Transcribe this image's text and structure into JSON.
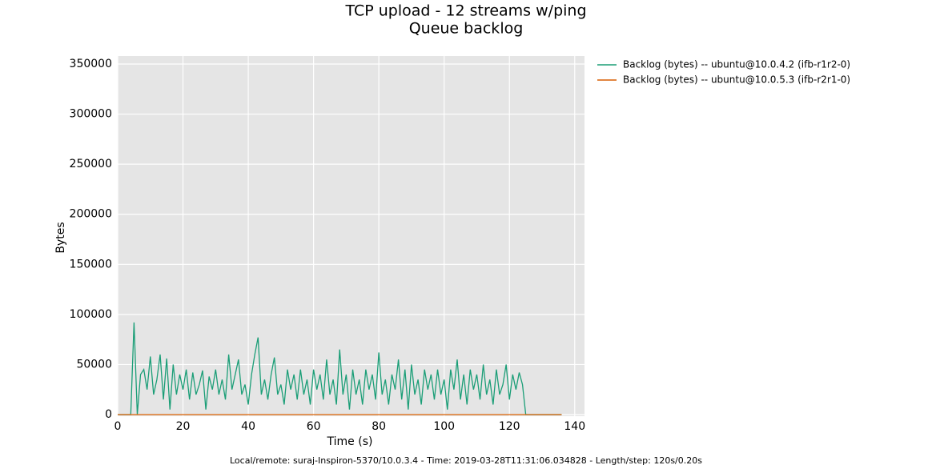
{
  "chart_data": {
    "type": "line",
    "title": "TCP upload - 12 streams w/ping",
    "subtitle": "Queue backlog",
    "x_label": "Time (s)",
    "y_label": "Bytes",
    "footer": "Local/remote: suraj-Inspiron-5370/10.0.3.4 - Time: 2019-03-28T11:31:06.034828 - Length/step: 120s/0.20s",
    "xlim": [
      0,
      143
    ],
    "ylim": [
      0,
      358000
    ],
    "xticks": [
      0,
      20,
      40,
      60,
      80,
      100,
      120,
      140
    ],
    "yticks": [
      0,
      50000,
      100000,
      150000,
      200000,
      250000,
      300000,
      350000
    ],
    "grid": true,
    "legend": "outside-right",
    "x": [
      0,
      1,
      2,
      3,
      4,
      5,
      6,
      7,
      8,
      9,
      10,
      11,
      12,
      13,
      14,
      15,
      16,
      17,
      18,
      19,
      20,
      21,
      22,
      23,
      24,
      25,
      26,
      27,
      28,
      29,
      30,
      31,
      32,
      33,
      34,
      35,
      36,
      37,
      38,
      39,
      40,
      41,
      42,
      43,
      44,
      45,
      46,
      47,
      48,
      49,
      50,
      51,
      52,
      53,
      54,
      55,
      56,
      57,
      58,
      59,
      60,
      61,
      62,
      63,
      64,
      65,
      66,
      67,
      68,
      69,
      70,
      71,
      72,
      73,
      74,
      75,
      76,
      77,
      78,
      79,
      80,
      81,
      82,
      83,
      84,
      85,
      86,
      87,
      88,
      89,
      90,
      91,
      92,
      93,
      94,
      95,
      96,
      97,
      98,
      99,
      100,
      101,
      102,
      103,
      104,
      105,
      106,
      107,
      108,
      109,
      110,
      111,
      112,
      113,
      114,
      115,
      116,
      117,
      118,
      119,
      120,
      121,
      122,
      123,
      124,
      125,
      126,
      127,
      128,
      129,
      130,
      131,
      132,
      133,
      134,
      135,
      136
    ],
    "series": [
      {
        "name": "Backlog (bytes) -- ubuntu@10.0.4.2 (ifb-r1r2-0)",
        "color": "#1b9e77",
        "values": [
          0,
          0,
          0,
          0,
          0,
          92000,
          0,
          40000,
          45000,
          25000,
          58000,
          20000,
          35000,
          60000,
          15000,
          56000,
          5000,
          50000,
          20000,
          40000,
          25000,
          45000,
          15000,
          42000,
          20000,
          30000,
          44000,
          5000,
          38000,
          25000,
          45000,
          20000,
          35000,
          15000,
          60000,
          25000,
          40000,
          55000,
          20000,
          30000,
          10000,
          40000,
          60000,
          77000,
          20000,
          35000,
          15000,
          40000,
          57000,
          20000,
          30000,
          10000,
          45000,
          25000,
          40000,
          15000,
          45000,
          20000,
          35000,
          10000,
          45000,
          25000,
          40000,
          15000,
          55000,
          20000,
          35000,
          10000,
          65000,
          20000,
          40000,
          5000,
          45000,
          20000,
          35000,
          10000,
          45000,
          25000,
          40000,
          15000,
          62000,
          20000,
          35000,
          10000,
          40000,
          25000,
          55000,
          15000,
          45000,
          5000,
          50000,
          20000,
          35000,
          10000,
          45000,
          25000,
          40000,
          15000,
          45000,
          20000,
          35000,
          5000,
          45000,
          25000,
          55000,
          15000,
          40000,
          10000,
          45000,
          25000,
          40000,
          15000,
          50000,
          20000,
          35000,
          10000,
          45000,
          20000,
          30000,
          50000,
          15000,
          40000,
          25000,
          42000,
          30000,
          0,
          0,
          0,
          0,
          0,
          0,
          0,
          0,
          0,
          0,
          0,
          0
        ]
      },
      {
        "name": "Backlog (bytes) -- ubuntu@10.0.5.3 (ifb-r2r1-0)",
        "color": "#d95f02",
        "values": [
          0,
          0,
          0,
          0,
          0,
          0,
          0,
          0,
          0,
          0,
          0,
          0,
          0,
          0,
          0,
          0,
          0,
          0,
          0,
          0,
          0,
          0,
          0,
          0,
          0,
          0,
          0,
          0,
          0,
          0,
          0,
          0,
          0,
          0,
          0,
          0,
          0,
          0,
          0,
          0,
          0,
          0,
          0,
          0,
          0,
          0,
          0,
          0,
          0,
          0,
          0,
          0,
          0,
          0,
          0,
          0,
          0,
          0,
          0,
          0,
          0,
          0,
          0,
          0,
          0,
          0,
          0,
          0,
          0,
          0,
          0,
          0,
          0,
          0,
          0,
          0,
          0,
          0,
          0,
          0,
          0,
          0,
          0,
          0,
          0,
          0,
          0,
          0,
          0,
          0,
          0,
          0,
          0,
          0,
          0,
          0,
          0,
          0,
          0,
          0,
          0,
          0,
          0,
          0,
          0,
          0,
          0,
          0,
          0,
          0,
          0,
          0,
          0,
          0,
          0,
          0,
          0,
          0,
          0,
          0,
          0,
          0,
          0,
          0,
          0,
          0,
          0,
          0,
          0,
          0,
          0,
          0,
          0,
          0,
          0,
          0,
          0
        ]
      }
    ]
  }
}
